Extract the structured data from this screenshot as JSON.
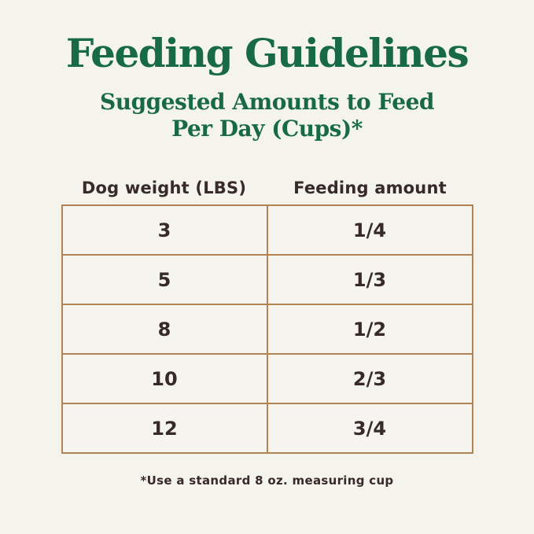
{
  "page": {
    "title": "Feeding Guidelines",
    "subtitle_line1": "Suggested Amounts to Feed",
    "subtitle_line2": "Per Day (Cups)*",
    "footnote": "*Use a standard 8 oz. measuring cup"
  },
  "table": {
    "columns": [
      "Dog weight (LBS)",
      "Feeding amount"
    ],
    "rows": [
      {
        "weight": "3",
        "amount": "1/4"
      },
      {
        "weight": "5",
        "amount": "1/3"
      },
      {
        "weight": "8",
        "amount": "1/2"
      },
      {
        "weight": "10",
        "amount": "2/3"
      },
      {
        "weight": "12",
        "amount": "3/4"
      }
    ]
  },
  "colors": {
    "background": "#f4f4ec",
    "heading_green": "#186946",
    "table_border": "#b18352",
    "text_dark": "#38292a"
  },
  "chart_data": {
    "type": "table",
    "title": "Feeding Guidelines",
    "subtitle": "Suggested Amounts to Feed Per Day (Cups)*",
    "columns": [
      "Dog weight (LBS)",
      "Feeding amount"
    ],
    "rows": [
      [
        "3",
        "1/4"
      ],
      [
        "5",
        "1/3"
      ],
      [
        "8",
        "1/2"
      ],
      [
        "10",
        "2/3"
      ],
      [
        "12",
        "3/4"
      ]
    ],
    "footnote": "*Use a standard 8 oz. measuring cup",
    "layout": "two-column table, header labels above bordered grid, all values centered"
  }
}
